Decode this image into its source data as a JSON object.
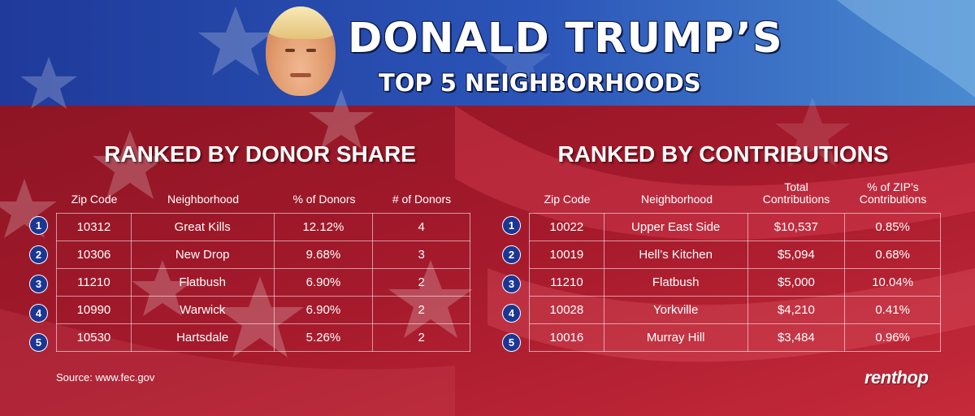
{
  "header": {
    "title": "DONALD TRUMP’S",
    "subtitle": "TOP 5 NEIGHBORHOODS"
  },
  "left_table": {
    "title": "RANKED BY DONOR SHARE",
    "columns": [
      "Zip Code",
      "Neighborhood",
      "% of Donors",
      "# of Donors"
    ],
    "ranks": [
      "1",
      "2",
      "3",
      "4",
      "5"
    ],
    "rows": [
      [
        "10312",
        "Great Kills",
        "12.12%",
        "4"
      ],
      [
        "10306",
        "New Drop",
        "9.68%",
        "3"
      ],
      [
        "11210",
        "Flatbush",
        "6.90%",
        "2"
      ],
      [
        "10990",
        "Warwick",
        "6.90%",
        "2"
      ],
      [
        "10530",
        "Hartsdale",
        "5.26%",
        "2"
      ]
    ]
  },
  "right_table": {
    "title": "RANKED BY CONTRIBUTIONS",
    "columns": [
      {
        "line1": "Zip Code",
        "line2": ""
      },
      {
        "line1": "Neighborhood",
        "line2": ""
      },
      {
        "line1": "Total",
        "line2": "Contributions"
      },
      {
        "line1": "% of ZIP’s",
        "line2": "Contributions"
      }
    ],
    "ranks": [
      "1",
      "2",
      "3",
      "4",
      "5"
    ],
    "rows": [
      [
        "10022",
        "Upper East Side",
        "$10,537",
        "0.85%"
      ],
      [
        "10019",
        "Hell’s Kitchen",
        "$5,094",
        "0.68%"
      ],
      [
        "11210",
        "Flatbush",
        "$5,000",
        "10.04%"
      ],
      [
        "10028",
        "Yorkville",
        "$4,210",
        "0.41%"
      ],
      [
        "10016",
        "Murray Hill",
        "$3,484",
        "0.96%"
      ]
    ]
  },
  "footer": {
    "source": "Source: www.fec.gov",
    "logo": "renthop"
  },
  "colors": {
    "blue": "#24388f",
    "red": "#a3192b",
    "rank_badge": "#1b3693"
  },
  "icons": {
    "portrait": "candidate-portrait",
    "stars": "flag-star-icon"
  }
}
